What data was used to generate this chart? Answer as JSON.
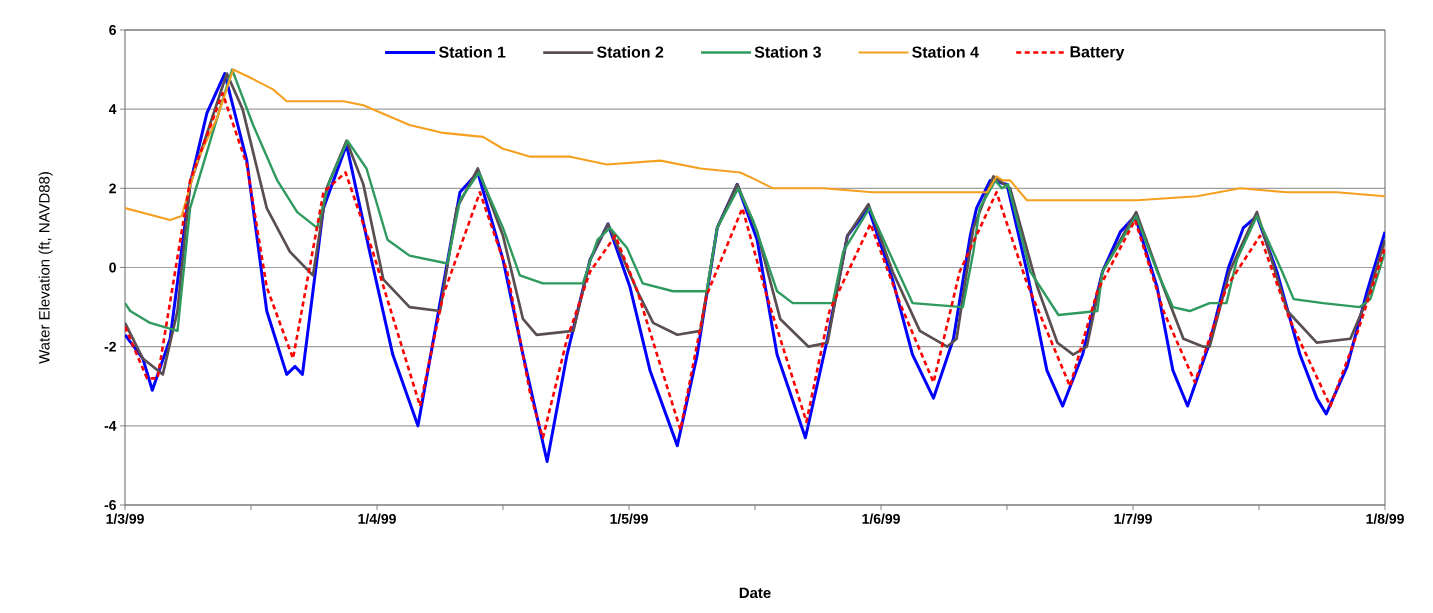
{
  "chart_data": {
    "type": "line",
    "xlabel": "Date",
    "ylabel": "Water Elevation (ft, NAVD88)",
    "xlim": [
      "1999-01-03T00:00",
      "1999-01-08T00:00"
    ],
    "xticks": [
      {
        "value": "1999-01-03T00:00",
        "label": "1/3/99"
      },
      {
        "value": "1999-01-03T12:00",
        "label": null
      },
      {
        "value": "1999-01-04T00:00",
        "label": "1/4/99"
      },
      {
        "value": "1999-01-04T12:00",
        "label": null
      },
      {
        "value": "1999-01-05T00:00",
        "label": "1/5/99"
      },
      {
        "value": "1999-01-05T12:00",
        "label": null
      },
      {
        "value": "1999-01-06T00:00",
        "label": "1/6/99"
      },
      {
        "value": "1999-01-06T12:00",
        "label": null
      },
      {
        "value": "1999-01-07T00:00",
        "label": "1/7/99"
      },
      {
        "value": "1999-01-07T12:00",
        "label": null
      },
      {
        "value": "1999-01-08T00:00",
        "label": "1/8/99"
      }
    ],
    "ylim": [
      -6,
      6
    ],
    "yticks": [
      -6,
      -4,
      -2,
      0,
      2,
      4,
      6
    ],
    "grid": "y",
    "legend": "top",
    "series": [
      {
        "name": "Station 1",
        "color": "#0000ff",
        "x": [
          "1999-01-03T00:00",
          "1999-01-03T01:42",
          "1999-01-03T02:36",
          "1999-01-03T04:18",
          "1999-01-03T06:12",
          "1999-01-03T07:48",
          "1999-01-03T09:30",
          "1999-01-03T11:36",
          "1999-01-03T13:30",
          "1999-01-03T15:24",
          "1999-01-03T16:12",
          "1999-01-03T16:54",
          "1999-01-03T18:54",
          "1999-01-03T21:06",
          "1999-01-03T23:18",
          "1999-01-04T01:30",
          "1999-01-04T03:54",
          "1999-01-04T06:00",
          "1999-01-04T07:54",
          "1999-01-04T09:36",
          "1999-01-04T12:00",
          "1999-01-04T13:54",
          "1999-01-04T16:12",
          "1999-01-04T18:06",
          "1999-01-04T20:18",
          "1999-01-04T22:00",
          "1999-01-05T00:06",
          "1999-01-05T02:00",
          "1999-01-05T04:36",
          "1999-01-05T06:30",
          "1999-01-05T08:24",
          "1999-01-05T10:18",
          "1999-01-05T12:12",
          "1999-01-05T14:06",
          "1999-01-05T16:48",
          "1999-01-05T18:54",
          "1999-01-05T20:48",
          "1999-01-05T22:48",
          "1999-01-06T01:06",
          "1999-01-06T03:00",
          "1999-01-06T05:00",
          "1999-01-06T06:54",
          "1999-01-06T08:30",
          "1999-01-06T09:06",
          "1999-01-06T10:24",
          "1999-01-06T12:00",
          "1999-01-06T13:54",
          "1999-01-06T15:48",
          "1999-01-06T17:18",
          "1999-01-06T19:12",
          "1999-01-06T21:06",
          "1999-01-06T22:48",
          "1999-01-07T00:12",
          "1999-01-07T02:18",
          "1999-01-07T03:48",
          "1999-01-07T05:12",
          "1999-01-07T07:18",
          "1999-01-07T09:06",
          "1999-01-07T10:30",
          "1999-01-07T11:48",
          "1999-01-07T13:42",
          "1999-01-07T15:54",
          "1999-01-07T17:30",
          "1999-01-07T18:24",
          "1999-01-07T20:24",
          "1999-01-07T22:18",
          "1999-01-08T00:00"
        ],
        "values": [
          -1.7,
          -2.3,
          -3.1,
          -1.8,
          2.1,
          3.9,
          4.9,
          2.7,
          -1.1,
          -2.7,
          -2.5,
          -2.7,
          1.5,
          3.1,
          0.4,
          -2.2,
          -4.0,
          -0.9,
          1.9,
          2.4,
          0.2,
          -2.2,
          -4.9,
          -2.2,
          0.2,
          1.1,
          -0.5,
          -2.6,
          -4.5,
          -2.2,
          1.0,
          2.1,
          0.7,
          -2.2,
          -4.3,
          -1.8,
          0.8,
          1.5,
          -0.3,
          -2.2,
          -3.3,
          -1.8,
          0.8,
          1.5,
          2.2,
          2.1,
          -0.1,
          -2.6,
          -3.5,
          -2.2,
          -0.1,
          0.9,
          1.3,
          -0.5,
          -2.6,
          -3.5,
          -1.9,
          0.0,
          1.0,
          1.3,
          -0.1,
          -2.2,
          -3.3,
          -3.7,
          -2.5,
          -0.6,
          0.9
        ]
      },
      {
        "name": "Station 2",
        "color": "#5a4e50",
        "x": [
          "1999-01-03T00:00",
          "1999-01-03T01:42",
          "1999-01-03T03:36",
          "1999-01-03T05:00",
          "1999-01-03T06:12",
          "1999-01-03T09:42",
          "1999-01-03T11:12",
          "1999-01-03T13:30",
          "1999-01-03T15:42",
          "1999-01-03T17:54",
          "1999-01-03T19:12",
          "1999-01-03T21:06",
          "1999-01-03T22:42",
          "1999-01-04T00:36",
          "1999-01-04T03:06",
          "1999-01-04T06:00",
          "1999-01-04T07:36",
          "1999-01-04T09:36",
          "1999-01-04T12:00",
          "1999-01-04T13:54",
          "1999-01-04T15:12",
          "1999-01-04T18:42",
          "1999-01-04T20:18",
          "1999-01-04T22:00",
          "1999-01-05T00:48",
          "1999-01-05T02:18",
          "1999-01-05T04:36",
          "1999-01-05T06:48",
          "1999-01-05T08:24",
          "1999-01-05T10:18",
          "1999-01-05T12:12",
          "1999-01-05T14:24",
          "1999-01-05T17:06",
          "1999-01-05T18:54",
          "1999-01-05T20:48",
          "1999-01-05T22:48",
          "1999-01-06T01:06",
          "1999-01-06T03:42",
          "1999-01-06T06:18",
          "1999-01-06T07:12",
          "1999-01-06T08:48",
          "1999-01-06T10:42",
          "1999-01-06T12:18",
          "1999-01-06T14:54",
          "1999-01-06T16:48",
          "1999-01-06T18:18",
          "1999-01-06T19:36",
          "1999-01-06T21:06",
          "1999-01-07T00:18",
          "1999-01-07T02:54",
          "1999-01-07T04:48",
          "1999-01-07T06:42",
          "1999-01-07T07:18",
          "1999-01-07T09:12",
          "1999-01-07T11:48",
          "1999-01-07T14:42",
          "1999-01-07T17:30",
          "1999-01-07T20:42",
          "1999-01-07T22:18",
          "1999-01-08T00:00"
        ],
        "values": [
          -1.4,
          -2.3,
          -2.7,
          -1.1,
          2.1,
          4.9,
          4.0,
          1.5,
          0.4,
          -0.2,
          2.0,
          3.2,
          2.1,
          -0.3,
          -1.0,
          -1.1,
          1.5,
          2.5,
          0.8,
          -1.3,
          -1.7,
          -1.6,
          0.2,
          1.1,
          -0.6,
          -1.4,
          -1.7,
          -1.6,
          1.0,
          2.1,
          0.9,
          -1.3,
          -2.0,
          -1.9,
          0.8,
          1.6,
          -0.1,
          -1.6,
          -2.0,
          -1.8,
          1.0,
          2.3,
          2.0,
          -0.5,
          -1.9,
          -2.2,
          -2.0,
          -0.1,
          1.4,
          -0.5,
          -1.8,
          -2.0,
          -2.0,
          -0.1,
          1.4,
          -1.1,
          -1.9,
          -1.8,
          -0.8,
          0.7
        ]
      },
      {
        "name": "Station 3",
        "color": "#2e9a5e",
        "x": [
          "1999-01-03T00:00",
          "1999-01-03T00:30",
          "1999-01-03T02:24",
          "1999-01-03T05:00",
          "1999-01-03T06:12",
          "1999-01-03T08:48",
          "1999-01-03T10:12",
          "1999-01-03T12:12",
          "1999-01-03T14:30",
          "1999-01-03T16:24",
          "1999-01-03T18:18",
          "1999-01-03T19:30",
          "1999-01-03T21:12",
          "1999-01-03T23:00",
          "1999-01-04T01:00",
          "1999-01-04T03:06",
          "1999-01-04T06:42",
          "1999-01-04T07:54",
          "1999-01-04T09:42",
          "1999-01-04T12:00",
          "1999-01-04T13:36",
          "1999-01-04T15:48",
          "1999-01-04T19:36",
          "1999-01-04T21:00",
          "1999-01-04T22:12",
          "1999-01-04T23:48",
          "1999-01-05T01:18",
          "1999-01-05T04:12",
          "1999-01-05T07:24",
          "1999-01-05T08:24",
          "1999-01-05T10:24",
          "1999-01-05T11:48",
          "1999-01-05T14:06",
          "1999-01-05T15:36",
          "1999-01-05T19:24",
          "1999-01-05T20:24",
          "1999-01-05T22:54",
          "1999-01-06T01:06",
          "1999-01-06T03:00",
          "1999-01-06T07:48",
          "1999-01-06T08:48",
          "1999-01-06T09:24",
          "1999-01-06T10:54",
          "1999-01-06T11:30",
          "1999-01-06T12:06",
          "1999-01-06T14:12",
          "1999-01-06T16:54",
          "1999-01-06T20:36",
          "1999-01-06T21:06",
          "1999-01-07T00:18",
          "1999-01-07T02:18",
          "1999-01-07T03:48",
          "1999-01-07T05:24",
          "1999-01-07T07:18",
          "1999-01-07T08:54",
          "1999-01-07T09:54",
          "1999-01-07T11:48",
          "1999-01-07T14:12",
          "1999-01-07T15:18",
          "1999-01-07T18:06",
          "1999-01-07T21:36",
          "1999-01-07T22:36",
          "1999-01-08T00:00"
        ],
        "values": [
          -0.9,
          -1.1,
          -1.4,
          -1.6,
          1.5,
          3.8,
          5.0,
          3.6,
          2.2,
          1.4,
          1.0,
          2.2,
          3.2,
          2.5,
          0.7,
          0.3,
          0.1,
          1.7,
          2.4,
          1.0,
          -0.2,
          -0.4,
          -0.4,
          0.7,
          1.0,
          0.5,
          -0.4,
          -0.6,
          -0.6,
          1.0,
          2.0,
          1.2,
          -0.6,
          -0.9,
          -0.9,
          0.4,
          1.5,
          0.2,
          -0.9,
          -1.0,
          0.4,
          1.5,
          2.2,
          2.0,
          2.1,
          -0.1,
          -1.2,
          -1.1,
          -0.1,
          1.3,
          -0.1,
          -1.0,
          -1.1,
          -0.9,
          -0.9,
          0.2,
          1.3,
          -0.1,
          -0.8,
          -0.9,
          -1.0,
          -0.8,
          0.4
        ]
      },
      {
        "name": "Station 4",
        "color": "#f5a020",
        "x": [
          "1999-01-03T00:00",
          "1999-01-03T04:18",
          "1999-01-03T05:24",
          "1999-01-03T06:54",
          "1999-01-03T08:48",
          "1999-01-03T10:18",
          "1999-01-03T11:54",
          "1999-01-03T14:06",
          "1999-01-03T15:24",
          "1999-01-03T20:48",
          "1999-01-03T22:42",
          "1999-01-04T03:06",
          "1999-01-04T06:18",
          "1999-01-04T10:06",
          "1999-01-04T12:00",
          "1999-01-04T14:36",
          "1999-01-04T18:24",
          "1999-01-04T21:54",
          "1999-01-05T03:00",
          "1999-01-05T06:48",
          "1999-01-05T10:36",
          "1999-01-05T12:12",
          "1999-01-05T13:42",
          "1999-01-05T18:30",
          "1999-01-05T23:12",
          "1999-01-06T04:00",
          "1999-01-06T09:24",
          "1999-01-06T10:06",
          "1999-01-06T11:00",
          "1999-01-06T11:36",
          "1999-01-06T12:18",
          "1999-01-06T13:54",
          "1999-01-06T16:06",
          "1999-01-07T00:24",
          "1999-01-07T06:06",
          "1999-01-07T10:12",
          "1999-01-07T14:42",
          "1999-01-07T19:24",
          "1999-01-08T00:00"
        ],
        "values": [
          1.5,
          1.2,
          1.3,
          2.7,
          3.8,
          5.0,
          4.8,
          4.5,
          4.2,
          4.2,
          4.1,
          3.6,
          3.4,
          3.3,
          3.0,
          2.8,
          2.8,
          2.6,
          2.7,
          2.5,
          2.4,
          2.2,
          2.0,
          2.0,
          1.9,
          1.9,
          1.9,
          1.9,
          2.3,
          2.2,
          2.2,
          1.7,
          1.7,
          1.7,
          1.8,
          2.0,
          1.9,
          1.9,
          1.8
        ]
      },
      {
        "name": "Battery",
        "color": "#ff0000",
        "line_style": "dashed",
        "x": [
          "1999-01-03T00:00",
          "1999-01-03T02:06",
          "1999-01-03T03:06",
          "1999-01-03T06:12",
          "1999-01-03T09:18",
          "1999-01-03T11:36",
          "1999-01-03T13:30",
          "1999-01-03T16:00",
          "1999-01-03T18:54",
          "1999-01-03T21:00",
          "1999-01-03T23:36",
          "1999-01-04T04:06",
          "1999-01-04T06:18",
          "1999-01-04T09:48",
          "1999-01-04T12:24",
          "1999-01-04T14:36",
          "1999-01-04T15:48",
          "1999-01-04T18:06",
          "1999-01-04T20:18",
          "1999-01-04T22:42",
          "1999-01-05T00:48",
          "1999-01-05T04:54",
          "1999-01-05T07:24",
          "1999-01-05T10:48",
          "1999-01-05T13:06",
          "1999-01-05T16:54",
          "1999-01-05T19:06",
          "1999-01-05T23:00",
          "1999-01-06T01:48",
          "1999-01-06T05:00",
          "1999-01-06T07:30",
          "1999-01-06T11:00",
          "1999-01-06T13:54",
          "1999-01-06T18:00",
          "1999-01-06T20:36",
          "1999-01-07T00:12",
          "1999-01-07T02:54",
          "1999-01-07T05:54",
          "1999-01-07T08:54",
          "1999-01-07T12:06",
          "1999-01-07T14:54",
          "1999-01-07T18:48",
          "1999-01-07T21:18",
          "1999-01-08T00:00"
        ],
        "values": [
          -1.5,
          -2.8,
          -2.8,
          2.2,
          4.4,
          2.6,
          -0.5,
          -2.3,
          1.9,
          2.4,
          0.4,
          -3.5,
          -0.7,
          1.9,
          -0.1,
          -3.2,
          -4.3,
          -1.8,
          -0.1,
          0.8,
          -0.6,
          -4.1,
          -0.7,
          1.5,
          -0.7,
          -3.9,
          -1.1,
          1.1,
          -0.9,
          -2.9,
          -0.1,
          1.9,
          -0.4,
          -3.0,
          -0.6,
          1.2,
          -1.1,
          -2.9,
          -0.5,
          0.8,
          -1.3,
          -3.5,
          -1.7,
          0.5
        ]
      }
    ]
  }
}
